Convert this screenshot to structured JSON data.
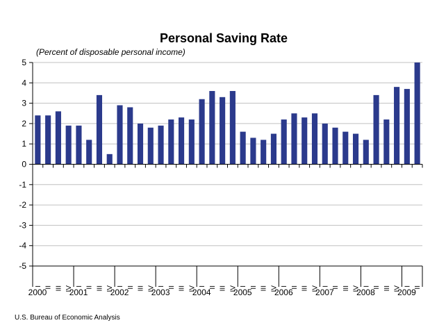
{
  "chart_data": {
    "type": "bar",
    "title": "Personal Saving Rate",
    "subtitle": "(Percent of disposable personal income)",
    "source": "U.S. Bureau of Economic Analysis",
    "bar_color": "#2B3A8C",
    "grid": true,
    "ylim": [
      -5,
      5
    ],
    "yticks": [
      5,
      4,
      3,
      2,
      1,
      0,
      -1,
      -2,
      -3,
      -4,
      -5
    ],
    "quarters": [
      "I",
      "II",
      "III",
      "IV",
      "I",
      "II",
      "III",
      "IV",
      "I",
      "II",
      "III",
      "IV",
      "I",
      "II",
      "III",
      "IV",
      "I",
      "II",
      "III",
      "IV",
      "I",
      "II",
      "III",
      "IV",
      "I",
      "II",
      "III",
      "IV",
      "I",
      "II",
      "III",
      "IV",
      "I",
      "II",
      "III",
      "IV",
      "I",
      "II"
    ],
    "years": [
      {
        "label": "2000",
        "start": 0
      },
      {
        "label": "2001",
        "start": 4
      },
      {
        "label": "2002",
        "start": 8
      },
      {
        "label": "2003",
        "start": 12
      },
      {
        "label": "2004",
        "start": 16
      },
      {
        "label": "2005",
        "start": 20
      },
      {
        "label": "2006",
        "start": 24
      },
      {
        "label": "2007",
        "start": 28
      },
      {
        "label": "2008",
        "start": 32
      },
      {
        "label": "2009",
        "start": 36
      }
    ],
    "values": [
      2.4,
      2.4,
      2.6,
      1.9,
      1.9,
      1.2,
      3.4,
      0.5,
      2.9,
      2.8,
      2.0,
      1.8,
      1.9,
      2.2,
      2.3,
      2.2,
      3.2,
      3.6,
      3.3,
      3.6,
      1.6,
      1.3,
      1.2,
      1.5,
      2.2,
      2.5,
      2.3,
      2.5,
      2.0,
      1.8,
      1.6,
      1.5,
      1.2,
      3.4,
      2.2,
      3.8,
      3.7,
      5.0
    ]
  }
}
